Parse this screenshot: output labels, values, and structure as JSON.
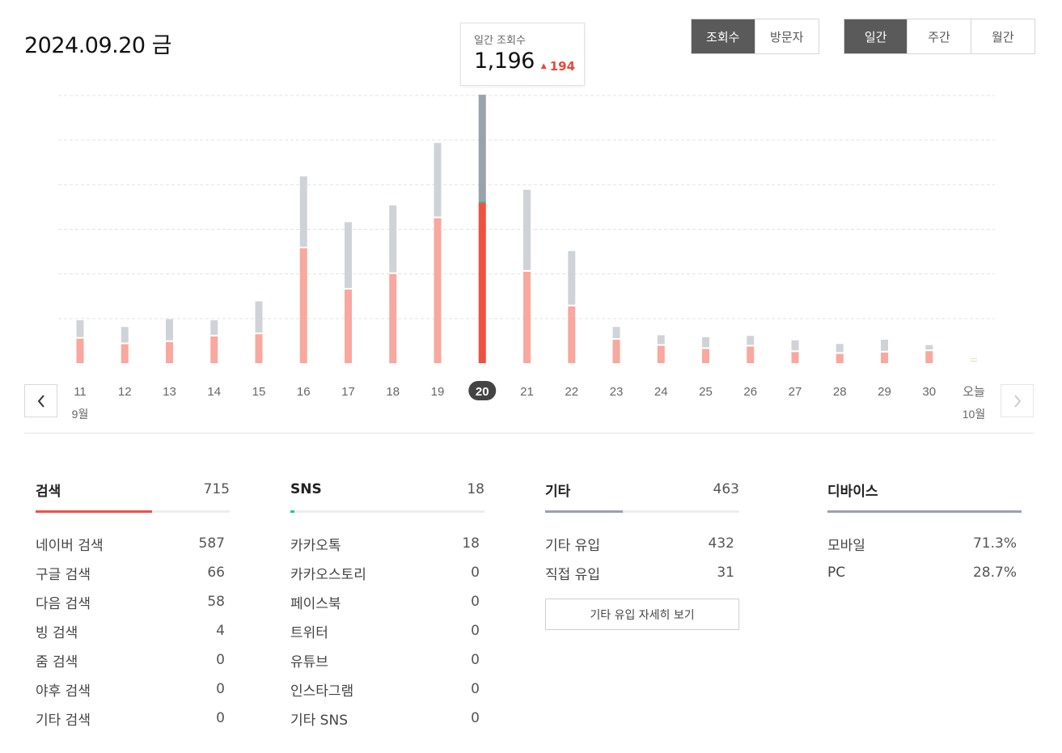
{
  "header": {
    "date": "2024.09.20 금"
  },
  "metric_toggle": {
    "views": "조회수",
    "visitors": "방문자",
    "active": "views"
  },
  "period_toggle": {
    "daily": "일간",
    "weekly": "주간",
    "monthly": "월간",
    "active": "daily"
  },
  "tooltip": {
    "label": "일간 조회수",
    "value": "1,196",
    "delta": "194",
    "delta_arrow": "▲"
  },
  "chart_data": {
    "type": "bar",
    "categories": [
      "11",
      "12",
      "13",
      "14",
      "15",
      "16",
      "17",
      "18",
      "19",
      "20",
      "21",
      "22",
      "23",
      "24",
      "25",
      "26",
      "27",
      "28",
      "29",
      "30",
      "오늘"
    ],
    "month_labels": [
      {
        "index": 0,
        "text": "9월"
      },
      {
        "index": 20,
        "text": "10월"
      }
    ],
    "selected_index": 9,
    "series": [
      {
        "values": [
          110,
          85,
          95,
          120,
          130,
          515,
          330,
          400,
          650,
          720,
          410,
          255,
          105,
          78,
          64,
          75,
          50,
          42,
          48,
          54,
          0
        ]
      },
      {
        "values": [
          75,
          70,
          95,
          65,
          140,
          315,
          295,
          300,
          330,
          476,
          360,
          240,
          50,
          40,
          45,
          40,
          45,
          37,
          50,
          20,
          0
        ]
      }
    ],
    "ylim": [
      0,
      1200
    ],
    "grid": true,
    "colors": {
      "primary": "#f8a89e",
      "primary_selected": "#f0513f",
      "secondary": "#cfd3d7",
      "secondary_selected": "#9aa3ac",
      "sns": "#23c3a7"
    }
  },
  "nav": {
    "prev_icon": "chevron-left-icon",
    "next_icon": "chevron-right-icon"
  },
  "panels": {
    "search": {
      "name": "검색",
      "total": "715",
      "ratio": 0.6,
      "color": "#e8534a",
      "rows": [
        {
          "label": "네이버 검색",
          "value": "587"
        },
        {
          "label": "구글 검색",
          "value": "66"
        },
        {
          "label": "다음 검색",
          "value": "58"
        },
        {
          "label": "빙 검색",
          "value": "4"
        },
        {
          "label": "줌 검색",
          "value": "0"
        },
        {
          "label": "야후 검색",
          "value": "0"
        },
        {
          "label": "기타 검색",
          "value": "0"
        }
      ]
    },
    "sns": {
      "name": "SNS",
      "total": "18",
      "ratio": 0.02,
      "color": "#23c3a7",
      "rows": [
        {
          "label": "카카오톡",
          "value": "18"
        },
        {
          "label": "카카오스토리",
          "value": "0"
        },
        {
          "label": "페이스북",
          "value": "0"
        },
        {
          "label": "트위터",
          "value": "0"
        },
        {
          "label": "유튜브",
          "value": "0"
        },
        {
          "label": "인스타그램",
          "value": "0"
        },
        {
          "label": "기타 SNS",
          "value": "0"
        }
      ]
    },
    "other": {
      "name": "기타",
      "total": "463",
      "ratio": 0.4,
      "color": "#9aa3ac",
      "rows": [
        {
          "label": "기타 유입",
          "value": "432"
        },
        {
          "label": "직접 유입",
          "value": "31"
        }
      ],
      "detail_button": "기타 유입 자세히 보기"
    },
    "device": {
      "name": "디바이스",
      "ratio": 1.0,
      "color": "#9aa3ac",
      "rows": [
        {
          "label": "모바일",
          "value": "71.3%"
        },
        {
          "label": "PC",
          "value": "28.7%"
        }
      ]
    }
  }
}
